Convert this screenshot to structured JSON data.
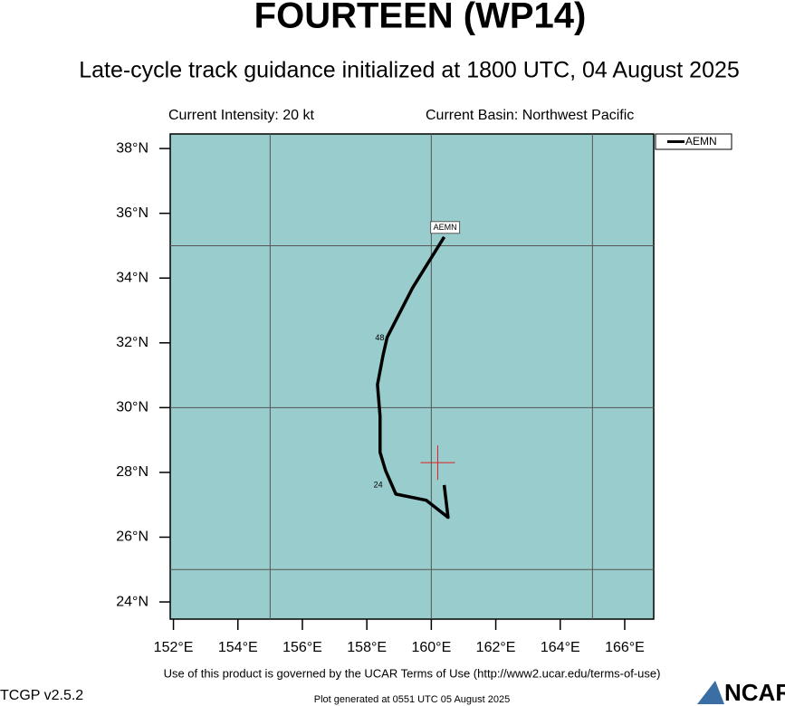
{
  "chart_data": {
    "type": "line",
    "title": "FOURTEEN (WP14)",
    "subtitle": "Late-cycle track guidance initialized at 1800 UTC, 04 August 2025",
    "intensity": "Current Intensity: 20 kt",
    "basin": "Current Basin: Northwest Pacific",
    "xlim": [
      151.9,
      166.9
    ],
    "ylim": [
      23.47,
      38.45
    ],
    "xticks": [
      {
        "value": 152,
        "label": "152°E"
      },
      {
        "value": 154,
        "label": "154°E"
      },
      {
        "value": 156,
        "label": "156°E"
      },
      {
        "value": 158,
        "label": "158°E"
      },
      {
        "value": 160,
        "label": "160°E"
      },
      {
        "value": 162,
        "label": "162°E"
      },
      {
        "value": 164,
        "label": "164°E"
      },
      {
        "value": 166,
        "label": "166°E"
      }
    ],
    "yticks": [
      {
        "value": 24,
        "label": "24°N"
      },
      {
        "value": 26,
        "label": "26°N"
      },
      {
        "value": 28,
        "label": "28°N"
      },
      {
        "value": 30,
        "label": "30°N"
      },
      {
        "value": 32,
        "label": "32°N"
      },
      {
        "value": 34,
        "label": "34°N"
      },
      {
        "value": 36,
        "label": "36°N"
      },
      {
        "value": 38,
        "label": "38°N"
      }
    ],
    "grid_x": [
      155,
      160,
      165
    ],
    "grid_y": [
      25,
      30,
      35
    ],
    "background": "#99cccc",
    "series": [
      {
        "name": "AEMN",
        "color": "#000000",
        "x": [
          160.4,
          160.52,
          159.84,
          158.9,
          158.58,
          158.41,
          158.41,
          158.33,
          158.5,
          158.63,
          159.42,
          160.4
        ],
        "values": [
          27.61,
          26.61,
          27.14,
          27.33,
          28.06,
          28.62,
          29.74,
          30.71,
          31.6,
          32.17,
          33.7,
          35.27
        ]
      }
    ],
    "hour_labels": [
      {
        "label": "24",
        "lon": 158.35,
        "lat": 27.6
      },
      {
        "label": "48",
        "lon": 158.4,
        "lat": 32.15
      }
    ],
    "current_position": {
      "lon": 160.2,
      "lat": 28.3,
      "color": "#dd2222"
    },
    "terms": "Use of this product is governed by the UCAR Terms of Use (http://www2.ucar.edu/terms-of-use)",
    "version": "TCGP v2.5.2",
    "generated": "Plot generated at 0551 UTC   05 August 2025",
    "logo": "NCAR"
  }
}
